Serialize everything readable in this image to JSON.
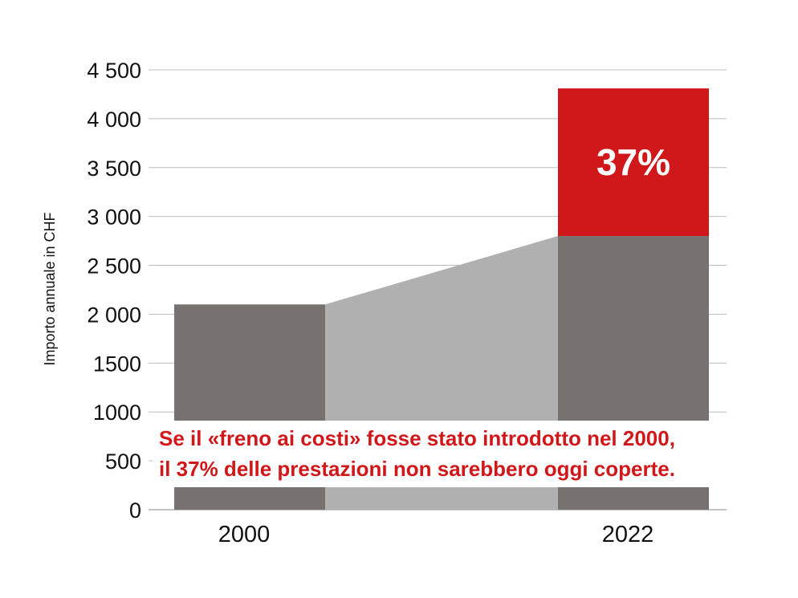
{
  "chart_data": {
    "type": "bar",
    "categories": [
      "2000",
      "2022"
    ],
    "ylabel": "Importo annuale in CHF",
    "ylim": [
      0,
      4500
    ],
    "yticks": [
      0,
      500,
      1000,
      1500,
      2000,
      2500,
      3000,
      3500,
      4000,
      4500
    ],
    "ytick_labels": [
      "0",
      "500",
      "1000",
      "1500",
      "2 000",
      "2 500",
      "3 000",
      "3 500",
      "4 000",
      "4 500"
    ],
    "grid": true,
    "series": [
      {
        "values": [
          2100,
          2800
        ],
        "color": "#777170"
      },
      {
        "values": [
          0,
          1510
        ],
        "color": "#d0181b"
      }
    ],
    "connector_color": "#b0b0b0",
    "annotation_label": "37%",
    "note_lines": [
      "Se il «freno ai costi» fosse stato introdotto nel 2000,",
      "il 37% delle prestazioni non sarebbero oggi coperte."
    ]
  }
}
